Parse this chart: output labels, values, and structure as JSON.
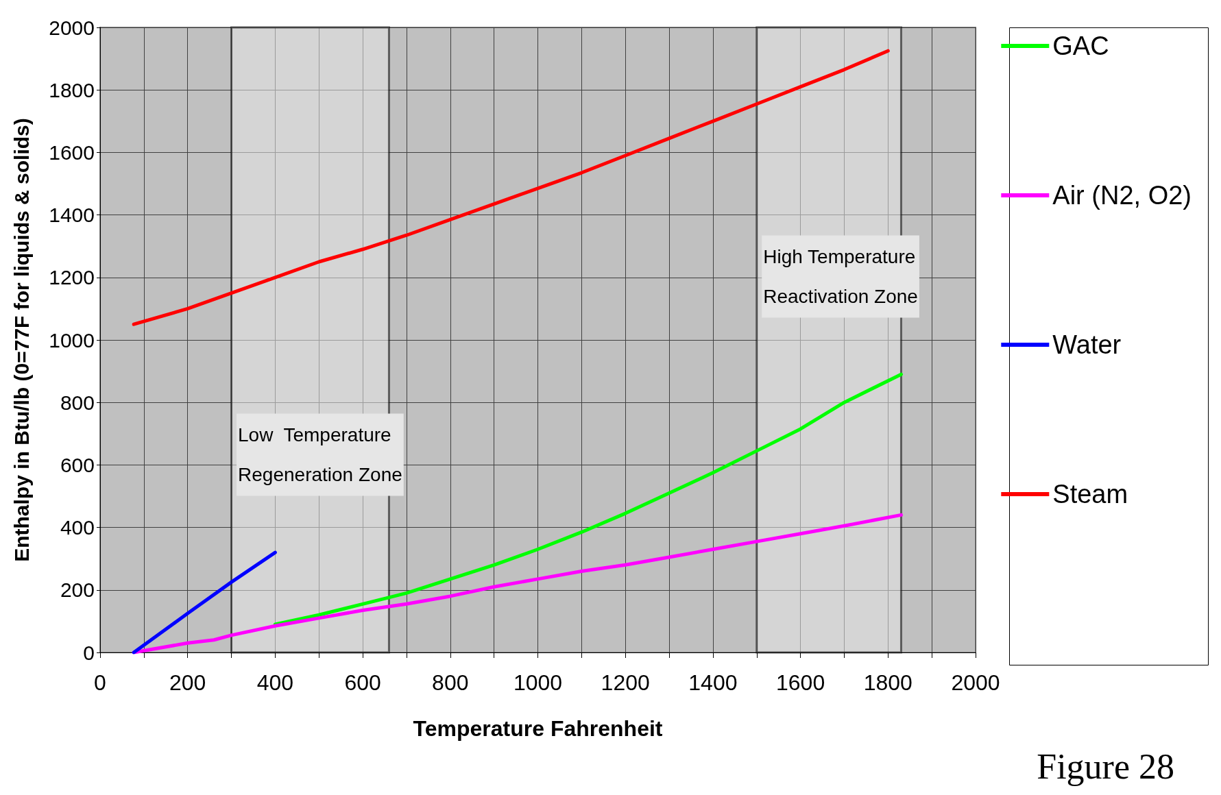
{
  "chart_data": {
    "type": "line",
    "xlabel": "Temperature Fahrenheit",
    "ylabel": "Enthalpy in Btu/lb (0=77F for liquids & solids)",
    "xlim": [
      0,
      2000
    ],
    "ylim": [
      0,
      2000
    ],
    "xticks": [
      0,
      {
        "value": 100,
        "label": null
      },
      200,
      {
        "value": 300,
        "label": null
      },
      400,
      {
        "value": 500,
        "label": null
      },
      600,
      {
        "value": 700,
        "label": null
      },
      800,
      {
        "value": 900,
        "label": null
      },
      1000,
      {
        "value": 1100,
        "label": null
      },
      1200,
      {
        "value": 1300,
        "label": null
      },
      1400,
      {
        "value": 1500,
        "label": null
      },
      1600,
      {
        "value": 1700,
        "label": null
      },
      1800,
      {
        "value": 1900,
        "label": null
      },
      2000
    ],
    "yticks": [
      0,
      200,
      400,
      600,
      800,
      1000,
      1200,
      1400,
      1600,
      1800,
      2000
    ],
    "grid": true,
    "legend": "right",
    "marker": "none",
    "line_style": "solid",
    "series": [
      {
        "name": "GAC",
        "color": "#00ff00",
        "x": [
          400,
          500,
          600,
          700,
          800,
          900,
          1000,
          1100,
          1200,
          1300,
          1400,
          1500,
          1600,
          1700,
          1830
        ],
        "values": [
          90,
          120,
          155,
          190,
          235,
          280,
          330,
          385,
          445,
          510,
          575,
          645,
          715,
          800,
          890
        ]
      },
      {
        "name": "Air (N2, O2)",
        "color": "#ff00ff",
        "x": [
          77,
          200,
          260,
          300,
          400,
          500,
          600,
          700,
          800,
          900,
          1000,
          1100,
          1200,
          1300,
          1400,
          1500,
          1600,
          1700,
          1830
        ],
        "values": [
          0,
          30,
          40,
          55,
          85,
          110,
          135,
          155,
          180,
          210,
          235,
          260,
          280,
          305,
          330,
          355,
          380,
          405,
          440
        ]
      },
      {
        "name": "Water",
        "color": "#0000ff",
        "x": [
          77,
          200,
          300,
          400
        ],
        "values": [
          0,
          125,
          225,
          320
        ]
      },
      {
        "name": "Steam",
        "color": "#ff0000",
        "x": [
          77,
          200,
          300,
          400,
          500,
          600,
          700,
          800,
          900,
          1000,
          1100,
          1200,
          1300,
          1400,
          1500,
          1600,
          1700,
          1800
        ],
        "values": [
          1050,
          1100,
          1150,
          1200,
          1250,
          1290,
          1335,
          1385,
          1435,
          1485,
          1535,
          1590,
          1645,
          1700,
          1755,
          1810,
          1865,
          1925
        ]
      }
    ],
    "bands": [
      {
        "axis": "x",
        "from": 300,
        "to": 660,
        "label": "Low  Temperature\nRegeneration Zone",
        "color": "#e6e6e6"
      },
      {
        "axis": "x",
        "from": 1500,
        "to": 1830,
        "label": "High Temperature\nReactivation Zone",
        "color": "#e6e6e6"
      }
    ],
    "annotations": [
      "Figure 28"
    ]
  }
}
